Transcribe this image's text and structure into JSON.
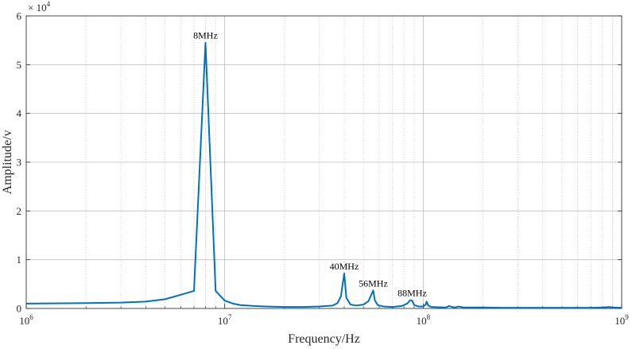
{
  "chart_data": {
    "type": "line",
    "xlabel": "Frequency/Hz",
    "ylabel": "Amplitude/v",
    "x_scale": "log",
    "xlim": [
      1000000,
      1000000000
    ],
    "ylim": [
      0,
      60000
    ],
    "y_multiplier_label": "× 10",
    "y_multiplier_exponent": "4",
    "y_ticks": [
      0,
      10000,
      20000,
      30000,
      40000,
      50000,
      60000
    ],
    "y_tick_labels": [
      "0",
      "1",
      "2",
      "3",
      "4",
      "5",
      "6"
    ],
    "x_ticks": [
      1000000,
      10000000,
      100000000,
      1000000000
    ],
    "x_tick_labels": [
      {
        "base": "10",
        "exp": "6"
      },
      {
        "base": "10",
        "exp": "7"
      },
      {
        "base": "10",
        "exp": "8"
      },
      {
        "base": "10",
        "exp": "9"
      }
    ],
    "grid": true,
    "line_color": "#0072BD",
    "series": [
      {
        "x": [
          1000000,
          2000000,
          3000000,
          4000000,
          5000000,
          6000000,
          7000000,
          8000000,
          9000000,
          10000000,
          11000000,
          12000000,
          14000000,
          16000000,
          20000000,
          25000000,
          30000000,
          35000000,
          37000000,
          38500000,
          40000000,
          41000000,
          43000000,
          46000000,
          50000000,
          53000000,
          55000000,
          56000000,
          57000000,
          59000000,
          63000000,
          70000000,
          78000000,
          83000000,
          86000000,
          88000000,
          90000000,
          95000000,
          100000000,
          103000000,
          104000000,
          106000000,
          110000000,
          130000000,
          135000000,
          140000000,
          145000000,
          150000000,
          160000000,
          200000000,
          250000000,
          300000000,
          400000000,
          500000000,
          700000000,
          800000000,
          860000000,
          900000000,
          1000000000
        ],
        "y": [
          1000,
          1100,
          1200,
          1400,
          1900,
          2800,
          3600,
          54500,
          3600,
          1600,
          1000,
          700,
          500,
          400,
          300,
          300,
          400,
          600,
          1100,
          2500,
          7200,
          2200,
          800,
          600,
          800,
          1500,
          3000,
          3700,
          1700,
          700,
          400,
          300,
          500,
          1000,
          1700,
          1600,
          700,
          400,
          400,
          800,
          1400,
          600,
          300,
          200,
          500,
          300,
          200,
          400,
          200,
          200,
          150,
          150,
          150,
          150,
          150,
          200,
          300,
          200,
          150
        ]
      }
    ],
    "annotations": [
      {
        "text": "8MHz",
        "x": 8000000,
        "y": 54500
      },
      {
        "text": "40MHz",
        "x": 40000000,
        "y": 7200
      },
      {
        "text": "56MHz",
        "x": 56000000,
        "y": 3700
      },
      {
        "text": "88MHz",
        "x": 88000000,
        "y": 1700
      }
    ]
  }
}
